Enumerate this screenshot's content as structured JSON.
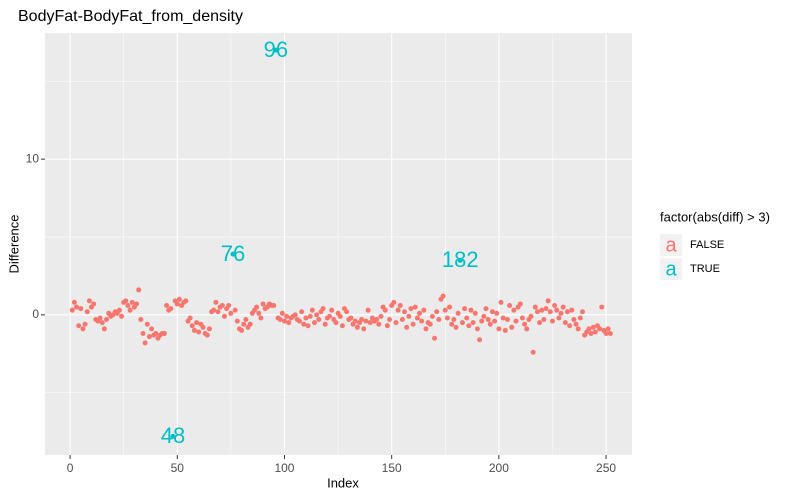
{
  "chart_data": {
    "type": "scatter",
    "title": "BodyFat-BodyFat_from_density",
    "x_label": "Index",
    "y_label": "Difference",
    "legend_title": "factor(abs(diff) > 3)",
    "legend_position": "right",
    "xlim": [
      -11.7,
      262.1
    ],
    "ylim": [
      -9.0,
      18.1
    ],
    "xticks": [
      0,
      50,
      100,
      150,
      200,
      250
    ],
    "yticks": [
      0,
      10
    ],
    "xminor": [
      25,
      75,
      125,
      175,
      225
    ],
    "yminor": [
      -5,
      5,
      15
    ],
    "grid": true,
    "series": [
      {
        "name": "FALSE",
        "color": "#F8766D",
        "x": [
          1,
          2,
          3,
          4,
          5,
          6,
          7,
          8,
          9,
          10,
          11,
          12,
          13,
          14,
          15,
          16,
          17,
          18,
          19,
          20,
          21,
          22,
          23,
          24,
          25,
          26,
          27,
          28,
          29,
          30,
          31,
          32,
          33,
          34,
          35,
          36,
          37,
          38,
          39,
          40,
          41,
          42,
          43,
          44,
          45,
          46,
          47,
          49,
          50,
          51,
          52,
          53,
          54,
          55,
          56,
          57,
          58,
          59,
          60,
          61,
          62,
          63,
          64,
          65,
          66,
          67,
          68,
          69,
          70,
          71,
          72,
          73,
          74,
          75,
          77,
          78,
          79,
          80,
          81,
          82,
          83,
          84,
          85,
          86,
          87,
          88,
          89,
          90,
          91,
          92,
          93,
          94,
          95,
          97,
          98,
          99,
          100,
          101,
          102,
          103,
          104,
          105,
          106,
          107,
          108,
          109,
          110,
          111,
          112,
          113,
          114,
          115,
          116,
          117,
          118,
          119,
          120,
          121,
          122,
          123,
          124,
          125,
          126,
          127,
          128,
          129,
          130,
          131,
          132,
          133,
          134,
          135,
          136,
          137,
          138,
          139,
          140,
          141,
          142,
          143,
          144,
          145,
          146,
          147,
          148,
          149,
          150,
          151,
          152,
          153,
          154,
          155,
          156,
          157,
          158,
          159,
          160,
          161,
          162,
          163,
          164,
          165,
          166,
          167,
          168,
          169,
          170,
          171,
          172,
          173,
          174,
          175,
          176,
          177,
          178,
          179,
          180,
          181,
          183,
          184,
          185,
          186,
          187,
          188,
          189,
          190,
          191,
          192,
          193,
          194,
          195,
          196,
          197,
          198,
          199,
          200,
          201,
          202,
          203,
          204,
          205,
          206,
          207,
          208,
          209,
          210,
          211,
          212,
          213,
          214,
          215,
          216,
          217,
          218,
          219,
          220,
          221,
          222,
          223,
          224,
          225,
          226,
          227,
          228,
          229,
          230,
          231,
          232,
          233,
          234,
          235,
          236,
          237,
          238,
          239,
          240,
          241,
          242,
          243,
          244,
          245,
          246,
          247,
          248,
          249,
          250,
          251,
          252
        ],
        "values": [
          0.3,
          0.8,
          0.5,
          -0.7,
          0.4,
          -0.9,
          -0.6,
          0.2,
          0.9,
          0.5,
          0.7,
          -0.3,
          -0.4,
          -0.2,
          -0.5,
          -0.9,
          -0.3,
          0.1,
          -0.1,
          0.0,
          0.2,
          0.1,
          0.3,
          -0.1,
          0.8,
          0.9,
          0.6,
          0.3,
          0.8,
          0.5,
          0.7,
          1.6,
          -0.3,
          -1.2,
          -1.8,
          -0.6,
          -1.4,
          -0.9,
          -1.3,
          -1.2,
          -1.5,
          -1.3,
          -1.2,
          -1.2,
          0.6,
          0.3,
          0.4,
          0.9,
          0.7,
          1.0,
          0.6,
          0.8,
          0.9,
          -0.4,
          -0.2,
          -0.7,
          -1.0,
          -0.5,
          -1.1,
          -0.6,
          -0.8,
          -1.2,
          -1.3,
          -0.9,
          0.2,
          0.3,
          0.8,
          0.2,
          0.5,
          0.6,
          -0.1,
          0.4,
          0.6,
          0.1,
          0.3,
          -0.4,
          -0.9,
          -1.0,
          -0.6,
          -0.3,
          -0.8,
          -0.6,
          0.1,
          0.3,
          0.5,
          0.1,
          -0.2,
          0.7,
          0.4,
          0.5,
          0.7,
          0.6,
          0.6,
          -0.2,
          -0.3,
          0.1,
          -0.4,
          -0.1,
          -0.5,
          -0.2,
          -0.1,
          0.0,
          -0.3,
          -0.4,
          0.2,
          -0.6,
          -0.2,
          -0.7,
          -0.1,
          0.3,
          -0.5,
          0.0,
          -0.3,
          0.2,
          0.4,
          -0.6,
          -0.2,
          -0.1,
          0.3,
          -0.3,
          -0.5,
          0.1,
          -0.1,
          -0.7,
          0.4,
          0.2,
          -0.3,
          -0.2,
          -0.6,
          -0.4,
          -0.8,
          -0.5,
          -0.3,
          -0.9,
          -0.4,
          0.3,
          -0.5,
          -0.2,
          -0.4,
          -0.3,
          -0.6,
          -0.1,
          0.5,
          0.3,
          -0.7,
          -0.3,
          0.6,
          0.8,
          -0.5,
          0.3,
          0.6,
          -0.3,
          0.2,
          -0.8,
          -0.1,
          0.4,
          -0.6,
          0.5,
          -0.2,
          0.1,
          -0.4,
          0.3,
          -0.9,
          -0.5,
          -0.6,
          -0.1,
          -1.5,
          0.2,
          -0.3,
          1.0,
          1.2,
          0.3,
          -0.2,
          0.5,
          -0.6,
          -0.3,
          -0.8,
          0.1,
          -0.5,
          0.4,
          -0.2,
          -0.7,
          0.3,
          -0.5,
          0.1,
          -0.9,
          -1.6,
          -0.4,
          -0.1,
          0.4,
          -0.3,
          -0.6,
          0.2,
          -0.4,
          0.1,
          -0.9,
          0.8,
          -0.2,
          -1.0,
          -0.3,
          0.6,
          -0.8,
          0.3,
          -0.4,
          0.5,
          0.7,
          -0.2,
          -0.6,
          -0.9,
          -0.3,
          -0.1,
          -2.4,
          0.5,
          0.2,
          -0.5,
          0.3,
          -0.3,
          0.4,
          0.9,
          0.2,
          -0.4,
          0.6,
          0.3,
          -0.2,
          0.1,
          0.5,
          -0.5,
          0.2,
          -0.7,
          0.3,
          -0.3,
          -0.6,
          -0.9,
          -0.2,
          0.2,
          -1.3,
          -1.1,
          -0.9,
          -1.2,
          -0.8,
          -1.1,
          -0.7,
          -0.9,
          0.5,
          -1.0,
          -1.2,
          -0.9,
          -1.2
        ]
      },
      {
        "name": "TRUE",
        "color": "#00BFC4",
        "x": [
          48,
          76,
          96,
          182
        ],
        "values": [
          -7.8,
          3.9,
          17.0,
          3.5
        ]
      }
    ]
  }
}
